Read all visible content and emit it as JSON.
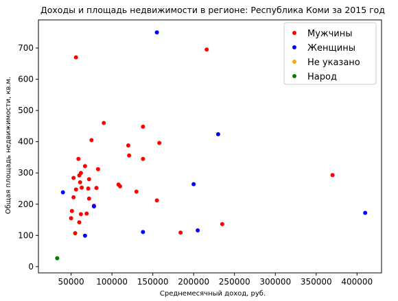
{
  "chart_data": {
    "type": "scatter",
    "title": "Доходы и площадь недвижимости в регионе: Республика Коми за 2015 год",
    "xlabel": "Среднемесячный доход, руб.",
    "ylabel": "Общая площадь недвижимости, кв.м.",
    "xlim": [
      10000,
      430000
    ],
    "ylim": [
      -20,
      790
    ],
    "xticks": [
      50000,
      100000,
      150000,
      200000,
      250000,
      300000,
      350000,
      400000
    ],
    "yticks": [
      0,
      100,
      200,
      300,
      400,
      500,
      600,
      700
    ],
    "legend_position": "top-right",
    "grid": false,
    "series": [
      {
        "name": "Мужчины",
        "color": "#ff0000",
        "points": [
          [
            56000,
            670
          ],
          [
            216000,
            695
          ],
          [
            90000,
            460
          ],
          [
            138000,
            448
          ],
          [
            75000,
            405
          ],
          [
            158000,
            396
          ],
          [
            120000,
            388
          ],
          [
            121000,
            356
          ],
          [
            59000,
            345
          ],
          [
            138000,
            345
          ],
          [
            67000,
            322
          ],
          [
            83000,
            312
          ],
          [
            62000,
            300
          ],
          [
            60000,
            292
          ],
          [
            370000,
            293
          ],
          [
            53000,
            284
          ],
          [
            72000,
            280
          ],
          [
            61000,
            270
          ],
          [
            108000,
            263
          ],
          [
            110000,
            257
          ],
          [
            63000,
            253
          ],
          [
            81000,
            252
          ],
          [
            71000,
            250
          ],
          [
            56000,
            247
          ],
          [
            130000,
            240
          ],
          [
            53000,
            222
          ],
          [
            72000,
            218
          ],
          [
            155000,
            212
          ],
          [
            78000,
            195
          ],
          [
            51000,
            178
          ],
          [
            62000,
            168
          ],
          [
            69000,
            170
          ],
          [
            50000,
            155
          ],
          [
            60000,
            142
          ],
          [
            235000,
            136
          ],
          [
            55000,
            107
          ],
          [
            184000,
            109
          ]
        ]
      },
      {
        "name": "Женщины",
        "color": "#0000ff",
        "points": [
          [
            155000,
            750
          ],
          [
            230000,
            424
          ],
          [
            200000,
            264
          ],
          [
            40000,
            238
          ],
          [
            78000,
            193
          ],
          [
            410000,
            172
          ],
          [
            205000,
            116
          ],
          [
            138000,
            111
          ],
          [
            67000,
            99
          ]
        ]
      },
      {
        "name": "Не указано",
        "color": "#ffa500",
        "points": []
      },
      {
        "name": "Народ",
        "color": "#008000",
        "points": [
          [
            33000,
            27
          ]
        ]
      }
    ]
  }
}
